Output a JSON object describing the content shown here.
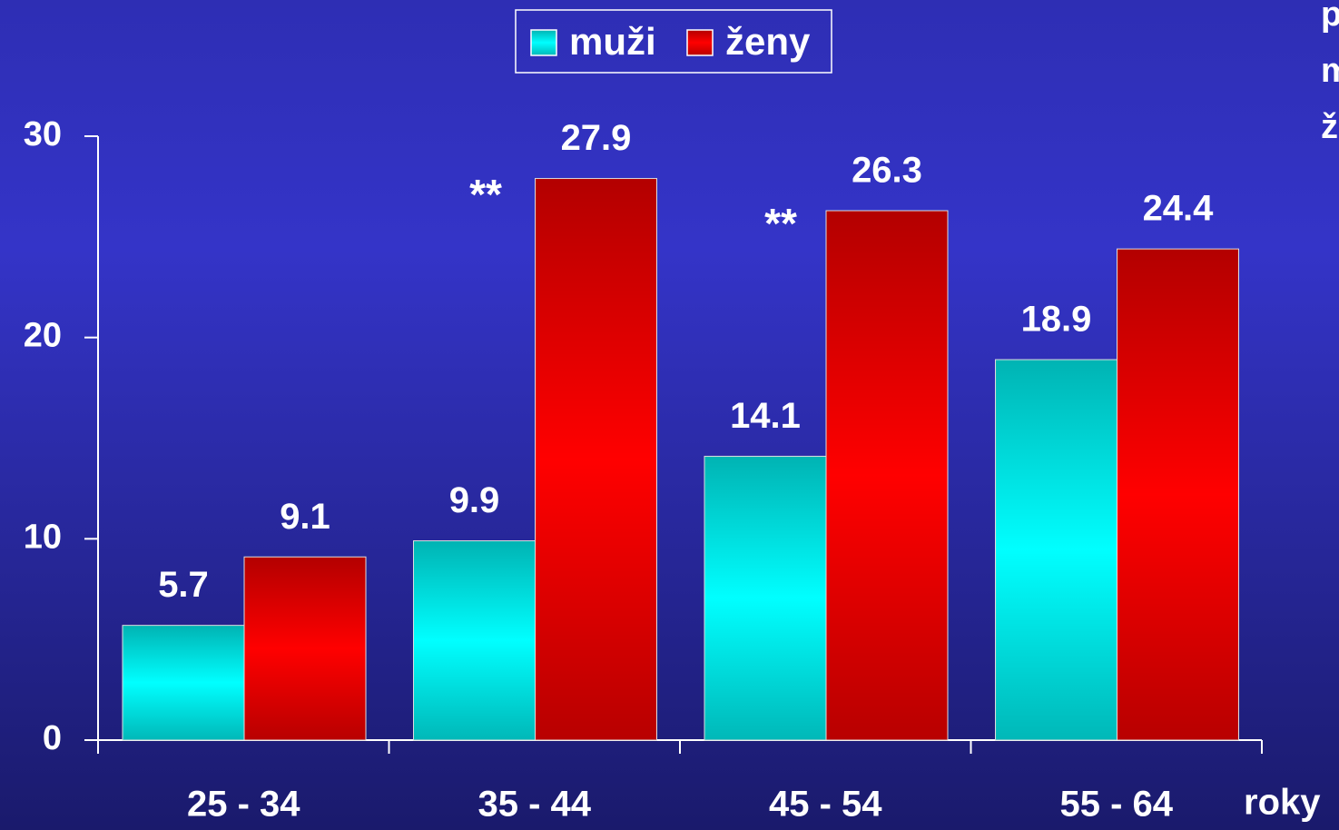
{
  "chart_data": {
    "type": "bar",
    "categories": [
      "25 - 34",
      "35 - 44",
      "45 - 54",
      "55 - 64"
    ],
    "series": [
      {
        "name": "muži",
        "color": "#00ffff",
        "values": [
          5.7,
          9.9,
          14.1,
          18.9
        ]
      },
      {
        "name": "ženy",
        "color": "#ff0000",
        "values": [
          9.1,
          27.9,
          26.3,
          24.4
        ]
      }
    ],
    "x_label": "roky",
    "ylim": [
      0,
      30
    ],
    "yticks": [
      0,
      10,
      20,
      30
    ],
    "grid": false,
    "legend": "top",
    "annotations": [
      "**",
      "**"
    ],
    "side_text": [
      "p",
      "m",
      "ž"
    ]
  }
}
